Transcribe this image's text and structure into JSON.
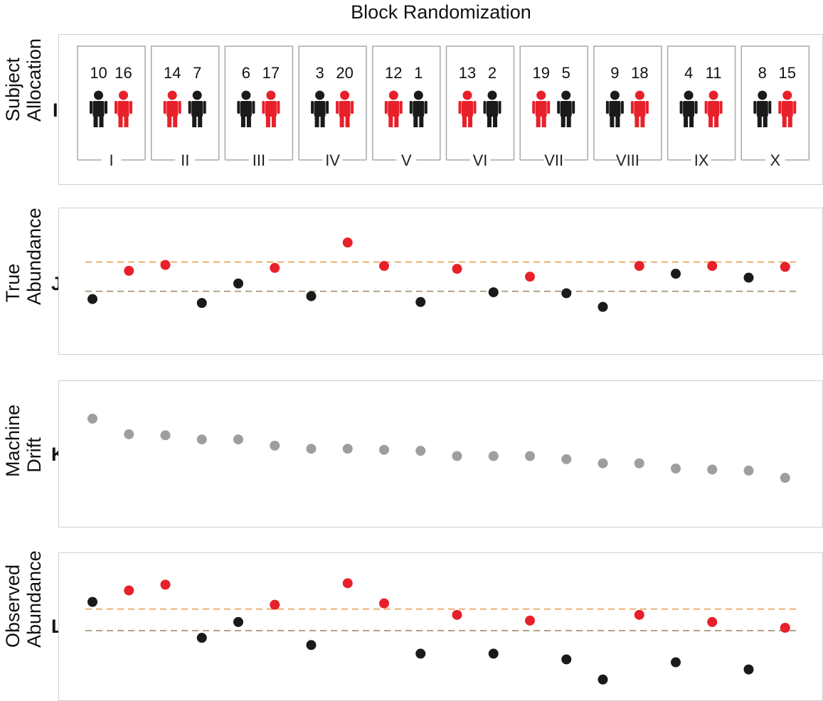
{
  "title": "Block Randomization",
  "rows": [
    {
      "letter": "I",
      "label_line1": "Subject",
      "label_line2": "Allocation"
    },
    {
      "letter": "J",
      "label_line1": "True",
      "label_line2": "Abundance"
    },
    {
      "letter": "K",
      "label_line1": "Machine",
      "label_line2": "Drift"
    },
    {
      "letter": "L",
      "label_line1": "Observed",
      "label_line2": "Abundance"
    }
  ],
  "colors": {
    "case": "#e8202a",
    "control": "#1a1a1a",
    "drift": "#9e9e9e",
    "upper_ref": "#e8a050",
    "lower_ref": "#a08c6e"
  },
  "blocks": [
    {
      "label": "I",
      "subjects": [
        {
          "id": "10",
          "group": "control"
        },
        {
          "id": "16",
          "group": "case"
        }
      ]
    },
    {
      "label": "II",
      "subjects": [
        {
          "id": "14",
          "group": "case"
        },
        {
          "id": "7",
          "group": "control"
        }
      ]
    },
    {
      "label": "III",
      "subjects": [
        {
          "id": "6",
          "group": "control"
        },
        {
          "id": "17",
          "group": "case"
        }
      ]
    },
    {
      "label": "IV",
      "subjects": [
        {
          "id": "3",
          "group": "control"
        },
        {
          "id": "20",
          "group": "case"
        }
      ]
    },
    {
      "label": "V",
      "subjects": [
        {
          "id": "12",
          "group": "case"
        },
        {
          "id": "1",
          "group": "control"
        }
      ]
    },
    {
      "label": "VI",
      "subjects": [
        {
          "id": "13",
          "group": "case"
        },
        {
          "id": "2",
          "group": "control"
        }
      ]
    },
    {
      "label": "VII",
      "subjects": [
        {
          "id": "19",
          "group": "case"
        },
        {
          "id": "5",
          "group": "control"
        }
      ]
    },
    {
      "label": "VIII",
      "subjects": [
        {
          "id": "9",
          "group": "control"
        },
        {
          "id": "18",
          "group": "case"
        }
      ]
    },
    {
      "label": "IX",
      "subjects": [
        {
          "id": "4",
          "group": "control"
        },
        {
          "id": "11",
          "group": "case"
        }
      ]
    },
    {
      "label": "X",
      "subjects": [
        {
          "id": "8",
          "group": "control"
        },
        {
          "id": "15",
          "group": "case"
        }
      ]
    }
  ],
  "chart_data": [
    {
      "type": "scatter",
      "panel": "J",
      "x": [
        1,
        2,
        3,
        4,
        5,
        6,
        7,
        8,
        9,
        10,
        11,
        12,
        13,
        14,
        15,
        16,
        17,
        18,
        19,
        20
      ],
      "groups": [
        "control",
        "case",
        "case",
        "control",
        "control",
        "case",
        "control",
        "case",
        "case",
        "control",
        "case",
        "control",
        "case",
        "control",
        "control",
        "case",
        "control",
        "case",
        "control",
        "case"
      ],
      "y": [
        -0.8,
        2.1,
        2.7,
        -1.2,
        0.8,
        2.4,
        -0.5,
        5.0,
        2.6,
        -1.1,
        2.3,
        -0.1,
        1.5,
        -0.2,
        -1.6,
        2.6,
        1.8,
        2.6,
        1.4,
        2.5
      ],
      "reference_lines": [
        {
          "y": 0,
          "group": "control"
        },
        {
          "y": 3,
          "group": "case"
        }
      ],
      "ylim": [
        -6,
        8
      ]
    },
    {
      "type": "scatter",
      "panel": "K",
      "x": [
        1,
        2,
        3,
        4,
        5,
        6,
        7,
        8,
        9,
        10,
        11,
        12,
        13,
        14,
        15,
        16,
        17,
        18,
        19,
        20
      ],
      "y": [
        10,
        8.5,
        8.4,
        8,
        8,
        7.4,
        7.1,
        7.1,
        7,
        6.9,
        6.4,
        6.4,
        6.4,
        6.1,
        5.7,
        5.7,
        5.2,
        5.1,
        5,
        4.3
      ],
      "ylim": [
        0,
        13
      ]
    },
    {
      "type": "scatter",
      "panel": "L",
      "x": [
        1,
        2,
        3,
        4,
        5,
        6,
        7,
        8,
        9,
        10,
        11,
        12,
        13,
        14,
        15,
        16,
        17,
        18,
        19,
        20
      ],
      "groups": [
        "control",
        "case",
        "case",
        "control",
        "control",
        "case",
        "control",
        "case",
        "case",
        "control",
        "case",
        "control",
        "case",
        "control",
        "control",
        "case",
        "control",
        "case",
        "control",
        "case"
      ],
      "y": [
        2.0,
        2.8,
        3.2,
        -0.5,
        0.6,
        1.8,
        -1.0,
        3.3,
        1.9,
        -1.6,
        1.1,
        -1.6,
        0.7,
        -2.0,
        -3.4,
        1.1,
        -2.2,
        0.6,
        -2.7,
        0.2
      ],
      "reference_lines": [
        {
          "y": 0,
          "group": "control"
        },
        {
          "y": 1.5,
          "group": "case"
        }
      ],
      "ylim": [
        -4.5,
        5
      ]
    }
  ]
}
